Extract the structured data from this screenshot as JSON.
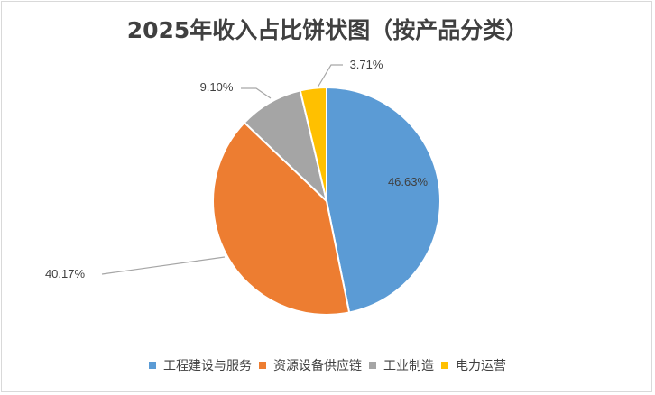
{
  "chart_data": {
    "type": "pie",
    "title": "2025年收入占比饼状图（按产品分类）",
    "categories": [
      "工程建设与服务",
      "资源设备供应链",
      "工业制造",
      "电力运营"
    ],
    "values": [
      46.63,
      40.17,
      9.1,
      3.71
    ],
    "labels": [
      "46.63%",
      "40.17%",
      "9.10%",
      "3.71%"
    ],
    "colors": [
      "#5b9bd5",
      "#ed7d31",
      "#a5a5a5",
      "#ffc000"
    ],
    "legend": "bottom"
  }
}
